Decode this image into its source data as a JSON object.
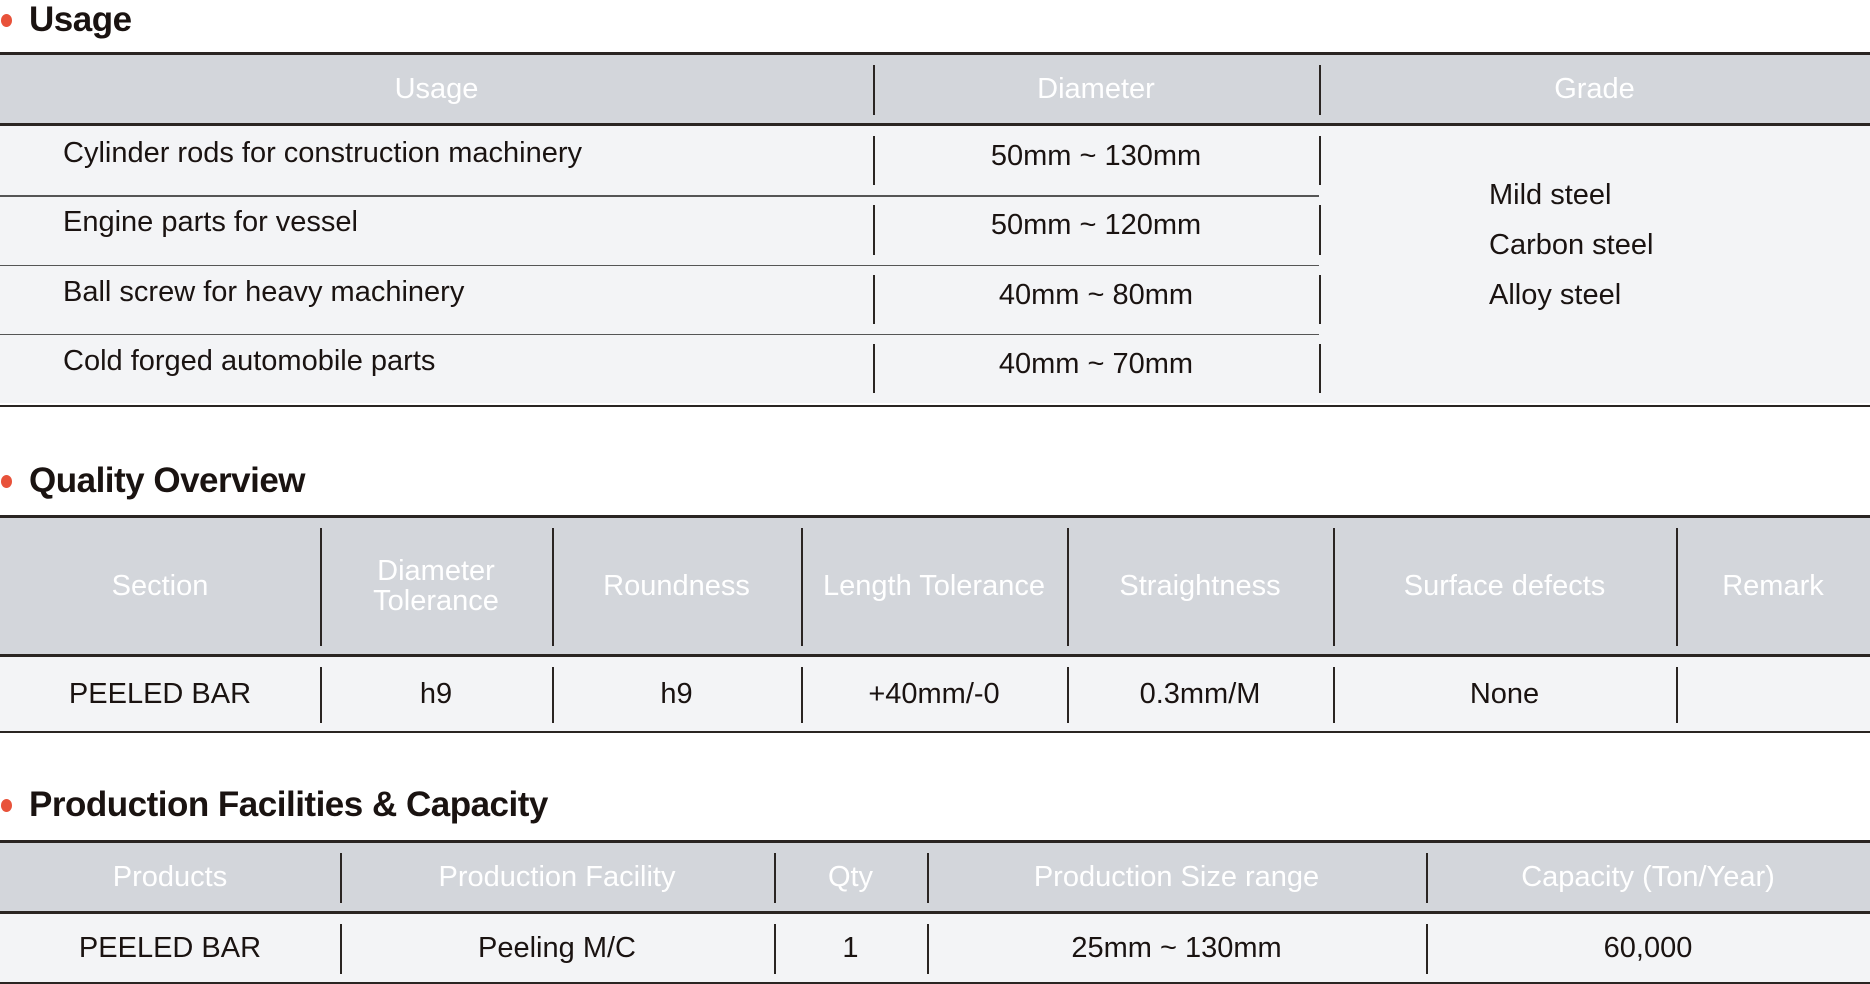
{
  "usage": {
    "title": "Usage",
    "headers": [
      "Usage",
      "Diameter",
      "Grade"
    ],
    "rows": [
      {
        "usage": "Cylinder rods for construction machinery",
        "diameter": "50mm ~ 130mm"
      },
      {
        "usage": "Engine parts for vessel",
        "diameter": "50mm ~ 120mm"
      },
      {
        "usage": "Ball screw for heavy machinery",
        "diameter": "40mm ~ 80mm"
      },
      {
        "usage": "Cold forged automobile parts",
        "diameter": "40mm ~ 70mm"
      }
    ],
    "grades": [
      "Mild steel",
      "Carbon steel",
      "Alloy steel"
    ]
  },
  "quality": {
    "title": "Quality Overview",
    "headers": [
      "Section",
      "Diameter Tolerance",
      "Roundness",
      "Length Tolerance",
      "Straightness",
      "Surface defects",
      "Remark"
    ],
    "row": [
      "PEELED BAR",
      "h9",
      "h9",
      "+40mm/-0",
      "0.3mm/M",
      "None",
      ""
    ]
  },
  "production": {
    "title": "Production Facilities & Capacity",
    "headers": [
      "Products",
      "Production Facility",
      "Qty",
      "Production Size range",
      "Capacity (Ton/Year)"
    ],
    "row": [
      "PEELED BAR",
      "Peeling M/C",
      "1",
      "25mm ~ 130mm",
      "60,000"
    ]
  },
  "colors": {
    "bullet": "#e8523a",
    "header_bg": "#d3d6db",
    "row_bg": "#f3f4f6"
  }
}
